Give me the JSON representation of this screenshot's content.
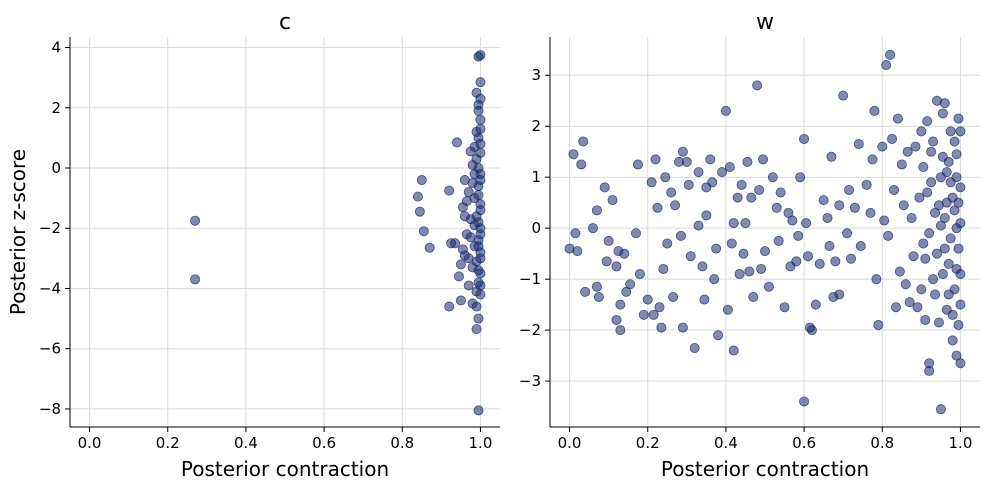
{
  "chart_data": [
    {
      "type": "scatter",
      "title": "c",
      "xlabel": "Posterior contraction",
      "ylabel": "Posterior z-score",
      "xlim": [
        -0.05,
        1.05
      ],
      "ylim": [
        -8.6,
        4.35
      ],
      "xticks": [
        0.0,
        0.2,
        0.4,
        0.6,
        0.8,
        1.0
      ],
      "xtick_labels": [
        "0.0",
        "0.2",
        "0.4",
        "0.6",
        "0.8",
        "1.0"
      ],
      "yticks": [
        -8,
        -6,
        -4,
        -2,
        0,
        2,
        4
      ],
      "ytick_labels": [
        "−8",
        "−6",
        "−4",
        "−2",
        "0",
        "2",
        "4"
      ],
      "grid": true,
      "marker_color": "#1a2a6c",
      "marker_alpha": 0.55,
      "points": [
        [
          0.27,
          -1.75
        ],
        [
          0.27,
          -3.7
        ],
        [
          0.84,
          -0.95
        ],
        [
          0.85,
          -0.4
        ],
        [
          0.845,
          -1.45
        ],
        [
          0.855,
          -2.1
        ],
        [
          0.87,
          -2.65
        ],
        [
          0.92,
          -0.75
        ],
        [
          0.925,
          -2.5
        ],
        [
          0.92,
          -4.6
        ],
        [
          0.935,
          -2.5
        ],
        [
          0.94,
          0.85
        ],
        [
          0.945,
          -3.6
        ],
        [
          0.95,
          -4.4
        ],
        [
          0.955,
          -1.3
        ],
        [
          0.96,
          -2.9
        ],
        [
          0.96,
          -0.4
        ],
        [
          0.965,
          -2.2
        ],
        [
          0.97,
          -0.8
        ],
        [
          0.97,
          -3.9
        ],
        [
          0.975,
          0.55
        ],
        [
          0.975,
          -1.7
        ],
        [
          0.98,
          -4.5
        ],
        [
          0.98,
          -3.3
        ],
        [
          0.985,
          -1.0
        ],
        [
          0.985,
          -2.6
        ],
        [
          0.99,
          -5.35
        ],
        [
          0.99,
          -4.1
        ],
        [
          0.995,
          -5.0
        ],
        [
          0.995,
          -8.05
        ],
        [
          0.995,
          3.7
        ],
        [
          1.0,
          3.75
        ],
        [
          1.0,
          2.85
        ],
        [
          0.995,
          2.1
        ],
        [
          1.0,
          1.6
        ],
        [
          0.99,
          1.2
        ],
        [
          1.0,
          0.8
        ],
        [
          0.99,
          0.3
        ],
        [
          1.0,
          -0.2
        ],
        [
          0.995,
          -0.6
        ],
        [
          1.0,
          -1.2
        ],
        [
          0.99,
          -1.6
        ],
        [
          1.0,
          -2.0
        ],
        [
          0.995,
          -2.4
        ],
        [
          1.0,
          -2.8
        ],
        [
          0.99,
          -3.1
        ],
        [
          1.0,
          -3.5
        ],
        [
          0.995,
          -3.8
        ],
        [
          1.0,
          -4.2
        ],
        [
          0.98,
          0.1
        ],
        [
          0.98,
          -0.5
        ],
        [
          0.985,
          -1.9
        ],
        [
          0.975,
          -2.3
        ],
        [
          0.97,
          -3.0
        ],
        [
          0.965,
          -1.1
        ],
        [
          0.96,
          -1.6
        ],
        [
          0.955,
          -2.7
        ],
        [
          0.95,
          -3.2
        ],
        [
          0.99,
          2.5
        ],
        [
          1.0,
          2.3
        ],
        [
          0.995,
          1.9
        ],
        [
          1.0,
          1.3
        ],
        [
          0.995,
          1.0
        ],
        [
          1.0,
          0.5
        ],
        [
          0.995,
          0.0
        ],
        [
          1.0,
          -0.4
        ],
        [
          0.995,
          -0.9
        ],
        [
          1.0,
          -1.4
        ],
        [
          0.995,
          -1.8
        ],
        [
          1.0,
          -2.2
        ],
        [
          0.995,
          -2.6
        ],
        [
          1.0,
          -3.0
        ],
        [
          0.995,
          -3.4
        ],
        [
          1.0,
          -3.9
        ],
        [
          0.99,
          -4.6
        ],
        [
          0.985,
          -0.2
        ],
        [
          0.985,
          0.7
        ]
      ]
    },
    {
      "type": "scatter",
      "title": "w",
      "xlabel": "Posterior contraction",
      "ylabel": "",
      "xlim": [
        -0.05,
        1.05
      ],
      "ylim": [
        -3.9,
        3.75
      ],
      "xticks": [
        0.0,
        0.2,
        0.4,
        0.6,
        0.8,
        1.0
      ],
      "xtick_labels": [
        "0.0",
        "0.2",
        "0.4",
        "0.6",
        "0.8",
        "1.0"
      ],
      "yticks": [
        -3,
        -2,
        -1,
        0,
        1,
        2,
        3
      ],
      "ytick_labels": [
        "−3",
        "−2",
        "−1",
        "0",
        "1",
        "2",
        "3"
      ],
      "grid": true,
      "marker_color": "#1a2a6c",
      "marker_alpha": 0.55,
      "points": [
        [
          0.0,
          -0.4
        ],
        [
          0.01,
          1.45
        ],
        [
          0.015,
          -0.1
        ],
        [
          0.02,
          -0.45
        ],
        [
          0.03,
          1.25
        ],
        [
          0.035,
          1.7
        ],
        [
          0.04,
          -1.25
        ],
        [
          0.06,
          0.0
        ],
        [
          0.07,
          0.35
        ],
        [
          0.07,
          -1.15
        ],
        [
          0.075,
          -1.35
        ],
        [
          0.09,
          0.8
        ],
        [
          0.095,
          -0.65
        ],
        [
          0.1,
          -0.25
        ],
        [
          0.11,
          0.55
        ],
        [
          0.12,
          -1.8
        ],
        [
          0.12,
          -0.75
        ],
        [
          0.125,
          -0.45
        ],
        [
          0.13,
          -1.5
        ],
        [
          0.13,
          -2.0
        ],
        [
          0.14,
          -0.5
        ],
        [
          0.145,
          -1.25
        ],
        [
          0.155,
          -1.1
        ],
        [
          0.17,
          -0.1
        ],
        [
          0.175,
          1.25
        ],
        [
          0.18,
          -0.9
        ],
        [
          0.19,
          -1.7
        ],
        [
          0.2,
          -1.4
        ],
        [
          0.21,
          0.9
        ],
        [
          0.215,
          -1.7
        ],
        [
          0.22,
          1.35
        ],
        [
          0.225,
          0.4
        ],
        [
          0.23,
          -1.55
        ],
        [
          0.235,
          -1.95
        ],
        [
          0.24,
          -0.8
        ],
        [
          0.245,
          1.0
        ],
        [
          0.25,
          -0.3
        ],
        [
          0.26,
          0.7
        ],
        [
          0.265,
          -1.35
        ],
        [
          0.27,
          0.45
        ],
        [
          0.28,
          1.3
        ],
        [
          0.285,
          -0.15
        ],
        [
          0.29,
          1.5
        ],
        [
          0.29,
          -1.95
        ],
        [
          0.3,
          1.3
        ],
        [
          0.305,
          0.85
        ],
        [
          0.31,
          -0.55
        ],
        [
          0.32,
          -2.35
        ],
        [
          0.33,
          0.05
        ],
        [
          0.33,
          1.1
        ],
        [
          0.34,
          -0.75
        ],
        [
          0.345,
          -1.4
        ],
        [
          0.35,
          0.25
        ],
        [
          0.35,
          0.8
        ],
        [
          0.36,
          1.35
        ],
        [
          0.365,
          0.9
        ],
        [
          0.37,
          -1.0
        ],
        [
          0.375,
          -0.4
        ],
        [
          0.38,
          -2.1
        ],
        [
          0.39,
          1.1
        ],
        [
          0.4,
          2.3
        ],
        [
          0.405,
          -1.6
        ],
        [
          0.41,
          1.2
        ],
        [
          0.415,
          -0.3
        ],
        [
          0.42,
          0.1
        ],
        [
          0.42,
          -2.4
        ],
        [
          0.43,
          0.6
        ],
        [
          0.435,
          -0.9
        ],
        [
          0.44,
          0.85
        ],
        [
          0.445,
          -0.5
        ],
        [
          0.45,
          0.1
        ],
        [
          0.455,
          1.3
        ],
        [
          0.46,
          -0.85
        ],
        [
          0.465,
          0.6
        ],
        [
          0.47,
          -1.35
        ],
        [
          0.48,
          2.8
        ],
        [
          0.485,
          0.75
        ],
        [
          0.49,
          -0.8
        ],
        [
          0.495,
          1.35
        ],
        [
          0.5,
          -0.45
        ],
        [
          0.51,
          -1.15
        ],
        [
          0.52,
          1.0
        ],
        [
          0.53,
          0.4
        ],
        [
          0.535,
          -0.25
        ],
        [
          0.54,
          0.7
        ],
        [
          0.55,
          -1.55
        ],
        [
          0.56,
          0.3
        ],
        [
          0.565,
          -0.75
        ],
        [
          0.57,
          0.15
        ],
        [
          0.58,
          -0.65
        ],
        [
          0.585,
          -0.15
        ],
        [
          0.59,
          1.0
        ],
        [
          0.6,
          1.75
        ],
        [
          0.6,
          -3.4
        ],
        [
          0.605,
          0.1
        ],
        [
          0.61,
          -0.55
        ],
        [
          0.615,
          -1.95
        ],
        [
          0.62,
          -2.0
        ],
        [
          0.63,
          -1.5
        ],
        [
          0.64,
          -0.7
        ],
        [
          0.65,
          0.55
        ],
        [
          0.66,
          0.2
        ],
        [
          0.665,
          -0.35
        ],
        [
          0.67,
          1.4
        ],
        [
          0.675,
          -1.35
        ],
        [
          0.68,
          -0.65
        ],
        [
          0.69,
          0.45
        ],
        [
          0.69,
          -1.3
        ],
        [
          0.7,
          2.6
        ],
        [
          0.71,
          -0.1
        ],
        [
          0.715,
          0.75
        ],
        [
          0.72,
          -0.6
        ],
        [
          0.73,
          0.4
        ],
        [
          0.74,
          1.65
        ],
        [
          0.745,
          -0.35
        ],
        [
          0.76,
          0.85
        ],
        [
          0.77,
          0.3
        ],
        [
          0.775,
          1.35
        ],
        [
          0.78,
          2.3
        ],
        [
          0.785,
          -1.0
        ],
        [
          0.79,
          -1.9
        ],
        [
          0.8,
          1.6
        ],
        [
          0.805,
          0.15
        ],
        [
          0.81,
          3.2
        ],
        [
          0.815,
          -0.15
        ],
        [
          0.82,
          3.4
        ],
        [
          0.825,
          1.75
        ],
        [
          0.83,
          0.75
        ],
        [
          0.835,
          -1.55
        ],
        [
          0.84,
          2.15
        ],
        [
          0.845,
          -0.85
        ],
        [
          0.85,
          1.25
        ],
        [
          0.855,
          0.45
        ],
        [
          0.86,
          -1.1
        ],
        [
          0.865,
          1.5
        ],
        [
          0.87,
          -1.45
        ],
        [
          0.875,
          0.2
        ],
        [
          0.88,
          -0.55
        ],
        [
          0.885,
          1.6
        ],
        [
          0.89,
          -1.55
        ],
        [
          0.895,
          0.6
        ],
        [
          0.9,
          1.9
        ],
        [
          0.905,
          -0.3
        ],
        [
          0.91,
          -1.8
        ],
        [
          0.915,
          2.1
        ],
        [
          0.92,
          -2.65
        ],
        [
          0.92,
          -2.8
        ],
        [
          0.925,
          0.9
        ],
        [
          0.93,
          1.7
        ],
        [
          0.935,
          -1.3
        ],
        [
          0.94,
          2.5
        ],
        [
          0.945,
          -1.85
        ],
        [
          0.95,
          0.05
        ],
        [
          0.95,
          -3.55
        ],
        [
          0.955,
          2.25
        ],
        [
          0.96,
          2.45
        ],
        [
          0.965,
          1.1
        ],
        [
          0.97,
          -0.7
        ],
        [
          0.975,
          1.9
        ],
        [
          0.98,
          -2.2
        ],
        [
          0.985,
          0.35
        ],
        [
          0.99,
          -2.5
        ],
        [
          0.995,
          2.15
        ],
        [
          1.0,
          -2.65
        ],
        [
          1.0,
          -1.5
        ],
        [
          0.995,
          -0.4
        ],
        [
          1.0,
          0.8
        ],
        [
          0.99,
          1.45
        ],
        [
          0.985,
          -1.2
        ],
        [
          0.98,
          0.6
        ],
        [
          0.975,
          -0.2
        ],
        [
          0.97,
          1.3
        ],
        [
          0.965,
          -1.6
        ],
        [
          0.96,
          0.2
        ],
        [
          0.955,
          -0.9
        ],
        [
          0.95,
          1.0
        ],
        [
          0.945,
          0.45
        ],
        [
          0.94,
          -0.5
        ],
        [
          0.935,
          0.3
        ],
        [
          0.93,
          -1.0
        ],
        [
          0.925,
          1.5
        ],
        [
          0.92,
          -0.1
        ],
        [
          0.915,
          0.7
        ],
        [
          0.91,
          -0.6
        ],
        [
          0.905,
          1.2
        ],
        [
          0.9,
          -1.2
        ],
        [
          1.0,
          1.9
        ],
        [
          0.995,
          -1.9
        ],
        [
          0.99,
          0.0
        ],
        [
          0.985,
          1.7
        ],
        [
          0.98,
          -1.7
        ],
        [
          0.975,
          0.9
        ],
        [
          0.97,
          -1.3
        ],
        [
          0.965,
          0.5
        ],
        [
          0.96,
          -0.4
        ],
        [
          0.955,
          1.4
        ],
        [
          1.0,
          0.1
        ],
        [
          0.995,
          0.5
        ],
        [
          0.99,
          -0.8
        ],
        [
          1.0,
          -0.9
        ],
        [
          0.99,
          1.0
        ]
      ]
    }
  ]
}
